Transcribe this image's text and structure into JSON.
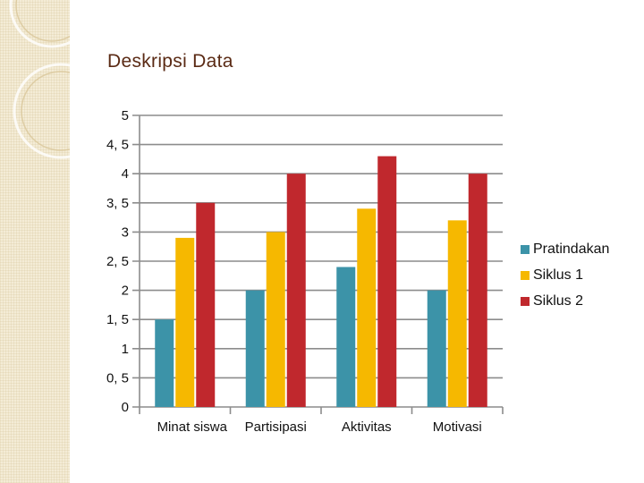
{
  "slide": {
    "title": "Deskripsi Data"
  },
  "colors": {
    "pratindakan": "#3c93a8",
    "siklus1": "#f6b800",
    "siklus2": "#c0282d",
    "grid": "#8c8c8c",
    "title": "#5a2a14"
  },
  "chart_data": {
    "type": "bar",
    "categories": [
      "Minat siswa",
      "Partisipasi",
      "Aktivitas",
      "Motivasi"
    ],
    "series": [
      {
        "name": "Pratindakan",
        "values": [
          1.5,
          2,
          2.4,
          2
        ]
      },
      {
        "name": "Siklus 1",
        "values": [
          2.9,
          3,
          3.4,
          3.2
        ]
      },
      {
        "name": "Siklus 2",
        "values": [
          3.5,
          4,
          4.3,
          4
        ]
      }
    ],
    "y_ticks": [
      "0",
      "0, 5",
      "1",
      "1, 5",
      "2",
      "2, 5",
      "3",
      "3, 5",
      "4",
      "4, 5",
      "5"
    ],
    "ylim": [
      0,
      5
    ],
    "grid": true,
    "legend_position": "right"
  }
}
